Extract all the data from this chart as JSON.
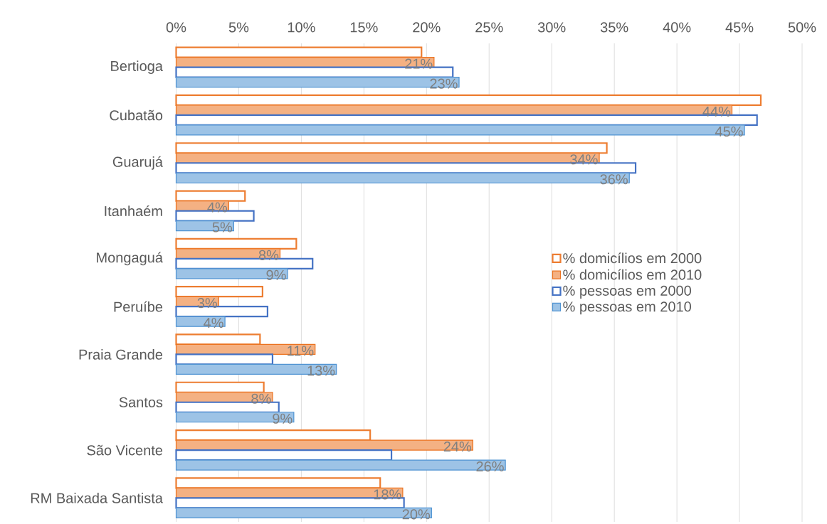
{
  "chart_data": {
    "type": "bar",
    "orientation": "horizontal",
    "categories": [
      "Bertioga",
      "Cubatão",
      "Guarujá",
      "Itanhaém",
      "Mongaguá",
      "Peruíbe",
      "Praia Grande",
      "Santos",
      "São Vicente",
      "RM Baixada Santista"
    ],
    "series": [
      {
        "name": "% domicílios em 2000",
        "color": "#ed7d31",
        "line_style": "solid",
        "values": [
          19.6,
          46.7,
          34.4,
          5.5,
          9.6,
          6.9,
          6.7,
          7.0,
          15.5,
          16.3
        ]
      },
      {
        "name": "% domicílios em 2010",
        "color": "#f4b183",
        "values": [
          20.6,
          44.4,
          33.8,
          4.2,
          8.3,
          3.4,
          11.1,
          7.7,
          23.7,
          18.1
        ],
        "value_labels": [
          "21%",
          "44%",
          "34%",
          "4%",
          "8%",
          "3%",
          "11%",
          "8%",
          "24%",
          "18%"
        ]
      },
      {
        "name": "% pessoas em 2000",
        "color": "#4472c4",
        "line_style": "solid",
        "values": [
          22.1,
          46.4,
          36.7,
          6.2,
          10.9,
          7.3,
          7.7,
          8.2,
          17.2,
          18.2
        ]
      },
      {
        "name": "% pessoas em 2010",
        "color": "#9dc3e6",
        "values": [
          22.6,
          45.4,
          36.2,
          4.6,
          8.9,
          3.9,
          12.8,
          9.4,
          26.3,
          20.4
        ],
        "value_labels": [
          "23%",
          "45%",
          "36%",
          "5%",
          "9%",
          "4%",
          "13%",
          "9%",
          "26%",
          "20%"
        ]
      }
    ],
    "xlim": [
      0,
      50
    ],
    "xticks": [
      {
        "value": 0,
        "label": "0%"
      },
      {
        "value": 5,
        "label": "5%"
      },
      {
        "value": 10,
        "label": "10%"
      },
      {
        "value": 15,
        "label": "15%"
      },
      {
        "value": 20,
        "label": "20%"
      },
      {
        "value": 25,
        "label": "25%"
      },
      {
        "value": 30,
        "label": "30%"
      },
      {
        "value": 35,
        "label": "35%"
      },
      {
        "value": 40,
        "label": "40%"
      },
      {
        "value": 45,
        "label": "45%"
      },
      {
        "value": 50,
        "label": "50%"
      }
    ],
    "grid": "x",
    "legend": "right"
  }
}
